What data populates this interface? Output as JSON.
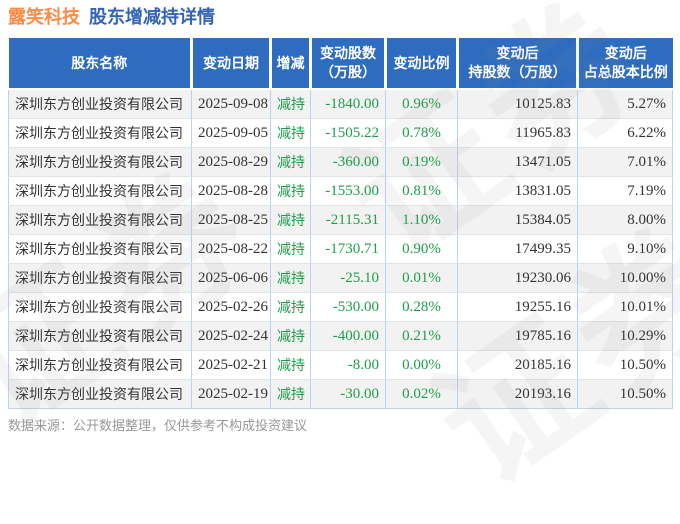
{
  "title": {
    "company": "露笑科技",
    "subtitle": "股东增减持详情"
  },
  "footer": {
    "source_note": "数据来源：公开数据整理，仅供参考不构成投资建议"
  },
  "watermark": {
    "text": "证券"
  },
  "colors": {
    "orange": "#fb8b48",
    "title-blue": "#3465b4",
    "header-bg": "#2e6cc0",
    "green": "#1f9e4c",
    "text-dark": "#333333",
    "row-alt": "#f2f2f2",
    "border-v": "#bdd3ea",
    "border-h": "#dbe3ec",
    "footer-gray": "#999999",
    "wm-gray": "#8a8a8a"
  },
  "table": {
    "columns": [
      {
        "key": "name",
        "lines": [
          "股东名称"
        ]
      },
      {
        "key": "date",
        "lines": [
          "变动日期"
        ]
      },
      {
        "key": "direction",
        "lines": [
          "增减"
        ]
      },
      {
        "key": "change_shares",
        "lines": [
          "变动股数",
          "（万股）"
        ]
      },
      {
        "key": "change_ratio",
        "lines": [
          "变动比例"
        ]
      },
      {
        "key": "shares_after",
        "lines": [
          "变动后",
          "持股数（万股）"
        ]
      },
      {
        "key": "ratio_after",
        "lines": [
          "变动后",
          "占总股本比例"
        ]
      }
    ]
  },
  "chart_data": {
    "type": "table",
    "title": "露笑科技 股东增减持详情",
    "columns": [
      "股东名称",
      "变动日期",
      "增减",
      "变动股数（万股）",
      "变动比例",
      "变动后持股数（万股）",
      "变动后占总股本比例"
    ],
    "rows": [
      [
        "深圳东方创业投资有限公司",
        "2025-09-08",
        "减持",
        "-1840.00",
        "0.96%",
        "10125.83",
        "5.27%"
      ],
      [
        "深圳东方创业投资有限公司",
        "2025-09-05",
        "减持",
        "-1505.22",
        "0.78%",
        "11965.83",
        "6.22%"
      ],
      [
        "深圳东方创业投资有限公司",
        "2025-08-29",
        "减持",
        "-360.00",
        "0.19%",
        "13471.05",
        "7.01%"
      ],
      [
        "深圳东方创业投资有限公司",
        "2025-08-28",
        "减持",
        "-1553.00",
        "0.81%",
        "13831.05",
        "7.19%"
      ],
      [
        "深圳东方创业投资有限公司",
        "2025-08-25",
        "减持",
        "-2115.31",
        "1.10%",
        "15384.05",
        "8.00%"
      ],
      [
        "深圳东方创业投资有限公司",
        "2025-08-22",
        "减持",
        "-1730.71",
        "0.90%",
        "17499.35",
        "9.10%"
      ],
      [
        "深圳东方创业投资有限公司",
        "2025-06-06",
        "减持",
        "-25.10",
        "0.01%",
        "19230.06",
        "10.00%"
      ],
      [
        "深圳东方创业投资有限公司",
        "2025-02-26",
        "减持",
        "-530.00",
        "0.28%",
        "19255.16",
        "10.01%"
      ],
      [
        "深圳东方创业投资有限公司",
        "2025-02-24",
        "减持",
        "-400.00",
        "0.21%",
        "19785.16",
        "10.29%"
      ],
      [
        "深圳东方创业投资有限公司",
        "2025-02-21",
        "减持",
        "-8.00",
        "0.00%",
        "20185.16",
        "10.50%"
      ],
      [
        "深圳东方创业投资有限公司",
        "2025-02-19",
        "减持",
        "-30.00",
        "0.02%",
        "20193.16",
        "10.50%"
      ]
    ]
  }
}
